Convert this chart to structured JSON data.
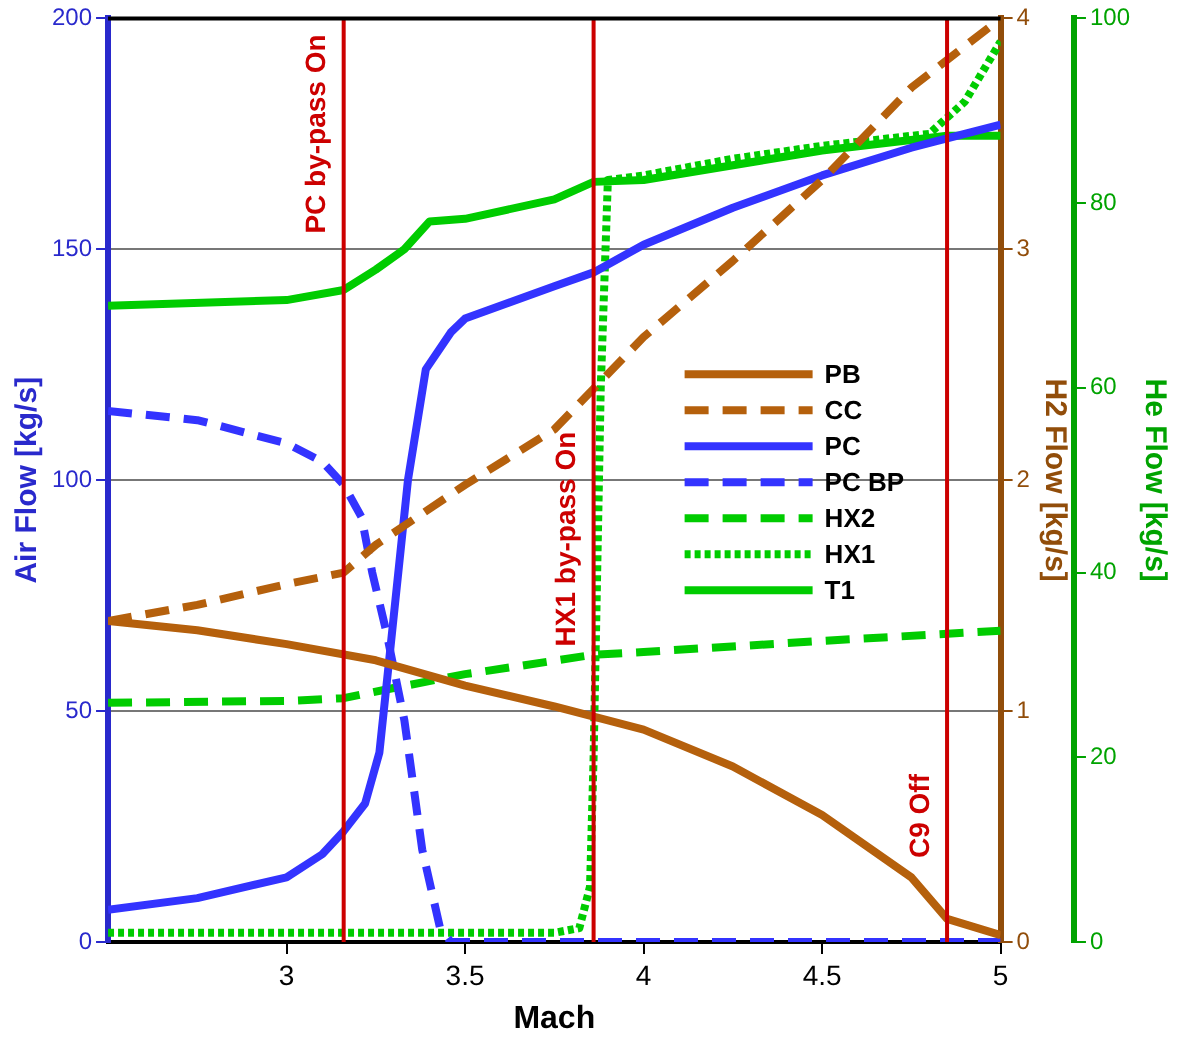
{
  "chart_data": {
    "type": "line",
    "xlabel": "Mach",
    "ylabel": "Air Flow [kg/s]",
    "y2label": "H2 Flow [kg/s]",
    "y3label": "He Flow [kg/s]",
    "xlim": [
      2.5,
      5
    ],
    "xticks": [
      3,
      3.5,
      4,
      4.5,
      5
    ],
    "ylim": [
      0,
      200
    ],
    "yticks": [
      0,
      50,
      100,
      150,
      200
    ],
    "y2lim": [
      0,
      4
    ],
    "y2ticks": [
      0,
      1,
      2,
      3,
      4
    ],
    "y3lim": [
      0,
      100
    ],
    "y3ticks": [
      0,
      20,
      40,
      60,
      80,
      100
    ],
    "grid": "y",
    "legend": "right",
    "marker": "none",
    "series": [
      {
        "name": "PB",
        "color": "#b5600c",
        "axis": "y2",
        "line_style": "solid",
        "x": [
          2.5,
          2.75,
          3,
          3.25,
          3.5,
          3.75,
          4,
          4.25,
          4.5,
          4.75,
          4.85,
          5
        ],
        "values": [
          1.39,
          1.35,
          1.29,
          1.22,
          1.11,
          1.02,
          0.92,
          0.76,
          0.55,
          0.28,
          0.1,
          0.03
        ]
      },
      {
        "name": "CC",
        "color": "#b5600c",
        "axis": "y2",
        "line_style": "dashed",
        "x": [
          2.5,
          2.75,
          3,
          3.16,
          3.25,
          3.5,
          3.75,
          4,
          4.25,
          4.5,
          4.75,
          5
        ],
        "values": [
          1.39,
          1.46,
          1.55,
          1.6,
          1.72,
          1.98,
          2.22,
          2.62,
          2.95,
          3.3,
          3.7,
          4.0
        ]
      },
      {
        "name": "PC",
        "color": "#3333ff",
        "axis": "y",
        "line_style": "solid",
        "x": [
          2.5,
          2.75,
          3,
          3.1,
          3.16,
          3.22,
          3.26,
          3.29,
          3.34,
          3.39,
          3.46,
          3.5,
          3.75,
          3.86,
          4,
          4.25,
          4.5,
          4.75,
          4.85,
          5
        ],
        "values": [
          7,
          9.5,
          14,
          19,
          24,
          30,
          41,
          63,
          100,
          124,
          132,
          135,
          142,
          145,
          151,
          159,
          166,
          172,
          174,
          177
        ]
      },
      {
        "name": "PC BP",
        "color": "#3333ff",
        "axis": "y",
        "line_style": "dashed",
        "x": [
          2.5,
          2.75,
          3,
          3.1,
          3.16,
          3.21,
          3.24,
          3.28,
          3.33,
          3.38,
          3.43,
          3.46,
          5
        ],
        "values": [
          115,
          113,
          108,
          104,
          99,
          92,
          80,
          67,
          48,
          20,
          3,
          0,
          0
        ]
      },
      {
        "name": "HX2",
        "color": "#00cc00",
        "axis": "y3",
        "line_style": "dashed",
        "x": [
          2.5,
          3,
          3.16,
          3.3,
          3.5,
          3.86,
          4,
          4.5,
          5
        ],
        "values": [
          25.9,
          26.1,
          26.4,
          27.5,
          29,
          31.1,
          31.4,
          32.6,
          33.7
        ]
      },
      {
        "name": "HX1",
        "color": "#00cc00",
        "axis": "y3",
        "line_style": "dotted",
        "x": [
          2.5,
          3.75,
          3.82,
          3.85,
          3.86,
          3.88,
          3.9,
          4,
          4.25,
          4.5,
          4.8,
          4.9,
          5
        ],
        "values": [
          1,
          1,
          1.5,
          6,
          20,
          60,
          82.5,
          83,
          84.8,
          86.2,
          87.5,
          91,
          97.5
        ]
      },
      {
        "name": "T1",
        "color": "#00cc00",
        "axis": "y3",
        "line_style": "solid",
        "x": [
          2.5,
          3,
          3.16,
          3.25,
          3.33,
          3.4,
          3.5,
          3.75,
          3.86,
          4,
          4.5,
          4.85,
          5
        ],
        "values": [
          68.9,
          69.5,
          70.6,
          72.8,
          75,
          78,
          78.3,
          80.4,
          82.3,
          82.5,
          85.7,
          87.3,
          87.3
        ]
      }
    ],
    "ref_lines": [
      {
        "axis": "x",
        "value": 3.16,
        "label": "PC by-pass On",
        "color": "#cc0000"
      },
      {
        "axis": "x",
        "value": 3.86,
        "label": "HX1 by-pass On",
        "color": "#cc0000"
      },
      {
        "axis": "x",
        "value": 4.85,
        "label": "C9 Off",
        "color": "#cc0000"
      }
    ]
  }
}
